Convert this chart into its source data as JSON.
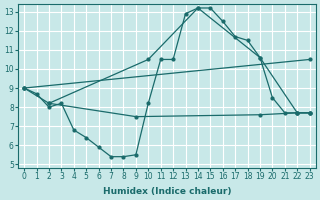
{
  "title": "",
  "xlabel": "Humidex (Indice chaleur)",
  "ylabel": "",
  "bg_color": "#c8e8e8",
  "grid_color": "#ffffff",
  "line_color": "#1a6b6b",
  "xlim": [
    -0.5,
    23.5
  ],
  "ylim": [
    4.8,
    13.4
  ],
  "xticks": [
    0,
    1,
    2,
    3,
    4,
    5,
    6,
    7,
    8,
    9,
    10,
    11,
    12,
    13,
    14,
    15,
    16,
    17,
    18,
    19,
    20,
    21,
    22,
    23
  ],
  "yticks": [
    5,
    6,
    7,
    8,
    9,
    10,
    11,
    12,
    13
  ],
  "curve1_x": [
    0,
    1,
    2,
    3,
    4,
    5,
    6,
    7,
    8,
    9,
    10,
    11,
    12,
    13,
    14,
    15,
    16,
    17,
    18,
    19,
    20,
    21,
    22,
    23
  ],
  "curve1_y": [
    9.0,
    8.7,
    8.0,
    8.2,
    6.8,
    6.4,
    5.9,
    5.4,
    5.4,
    5.5,
    8.2,
    10.5,
    10.5,
    12.9,
    13.2,
    13.2,
    12.5,
    11.7,
    11.5,
    10.6,
    8.5,
    7.7,
    7.7,
    7.7
  ],
  "curve2_x": [
    0,
    2,
    10,
    14,
    19,
    22,
    23
  ],
  "curve2_y": [
    9.0,
    8.2,
    10.5,
    13.2,
    10.6,
    7.7,
    7.7
  ],
  "curve3_x": [
    0,
    23
  ],
  "curve3_y": [
    9.0,
    10.5
  ],
  "curve4_x": [
    2,
    9,
    19,
    22,
    23
  ],
  "curve4_y": [
    8.2,
    7.5,
    7.6,
    7.7,
    7.7
  ]
}
